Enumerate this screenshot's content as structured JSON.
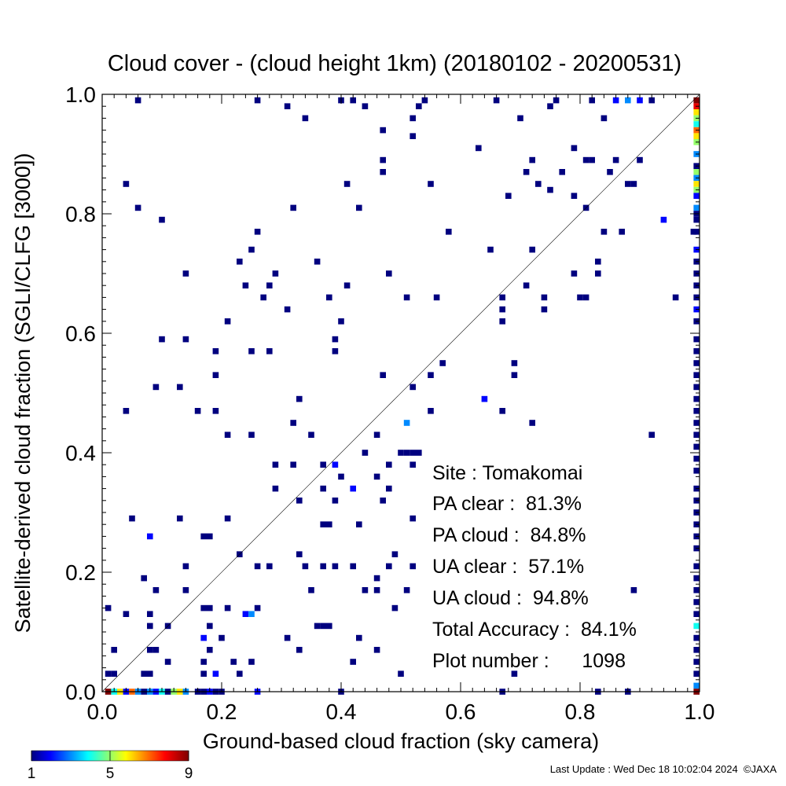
{
  "chart_data": {
    "type": "heatmap",
    "title": "Cloud cover - (cloud height 1km)  (20180102 - 20200531)",
    "xlabel": "Ground-based cloud fraction (sky camera)",
    "ylabel": "Satellite-derived cloud fraction (SGLI/CLFG [3000])",
    "xlim": [
      0.0,
      1.0
    ],
    "ylim": [
      0.0,
      1.0
    ],
    "xticks": [
      "0.0",
      "0.2",
      "0.4",
      "0.6",
      "0.8",
      "1.0"
    ],
    "yticks": [
      "0.0",
      "0.2",
      "0.4",
      "0.6",
      "0.8",
      "1.0"
    ],
    "grid": false,
    "reference_line": "1:1 diagonal",
    "colorbar": {
      "min": 1,
      "max": 9,
      "tick_labels": [
        "1",
        "5",
        "9"
      ]
    },
    "stats": {
      "site": "Site : Tomakomai",
      "pa_clear": "PA clear :  81.3%",
      "pa_cloud": "PA cloud :  84.8%",
      "ua_clear": "UA clear :  57.1%",
      "ua_cloud": "UA cloud :  94.8%",
      "total_accuracy": "Total Accuracy :  84.1%",
      "plot_number": "Plot number :      1098"
    },
    "cells": [
      [
        0.06,
        0.99,
        1
      ],
      [
        0.26,
        0.99,
        1
      ],
      [
        0.4,
        0.99,
        1
      ],
      [
        0.42,
        0.99,
        1
      ],
      [
        0.54,
        0.99,
        1
      ],
      [
        0.66,
        0.99,
        1
      ],
      [
        0.76,
        0.99,
        1
      ],
      [
        0.82,
        0.99,
        1
      ],
      [
        0.86,
        0.99,
        2
      ],
      [
        0.88,
        0.99,
        3
      ],
      [
        0.9,
        0.99,
        2
      ],
      [
        0.92,
        0.99,
        1
      ],
      [
        0.31,
        0.98,
        1
      ],
      [
        0.44,
        0.98,
        1
      ],
      [
        0.53,
        0.98,
        1
      ],
      [
        0.75,
        0.98,
        1
      ],
      [
        0.34,
        0.96,
        1
      ],
      [
        0.52,
        0.96,
        1
      ],
      [
        0.7,
        0.96,
        1
      ],
      [
        0.84,
        0.96,
        1
      ],
      [
        0.47,
        0.94,
        1
      ],
      [
        0.52,
        0.93,
        1
      ],
      [
        0.63,
        0.91,
        1
      ],
      [
        0.79,
        0.91,
        1
      ],
      [
        0.47,
        0.89,
        1
      ],
      [
        0.72,
        0.89,
        1
      ],
      [
        0.81,
        0.89,
        1
      ],
      [
        0.82,
        0.89,
        1
      ],
      [
        0.86,
        0.89,
        1
      ],
      [
        0.9,
        0.89,
        1
      ],
      [
        0.47,
        0.87,
        1
      ],
      [
        0.71,
        0.87,
        1
      ],
      [
        0.77,
        0.87,
        1
      ],
      [
        0.85,
        0.87,
        1
      ],
      [
        0.04,
        0.85,
        1
      ],
      [
        0.41,
        0.85,
        1
      ],
      [
        0.55,
        0.85,
        1
      ],
      [
        0.73,
        0.85,
        1
      ],
      [
        0.88,
        0.85,
        1
      ],
      [
        0.89,
        0.85,
        1
      ],
      [
        0.68,
        0.83,
        1
      ],
      [
        0.75,
        0.84,
        1
      ],
      [
        0.79,
        0.83,
        1
      ],
      [
        0.06,
        0.81,
        1
      ],
      [
        0.32,
        0.81,
        1
      ],
      [
        0.43,
        0.81,
        1
      ],
      [
        0.81,
        0.81,
        1
      ],
      [
        0.1,
        0.79,
        1
      ],
      [
        0.94,
        0.79,
        2
      ],
      [
        0.26,
        0.77,
        1
      ],
      [
        0.58,
        0.77,
        1
      ],
      [
        0.84,
        0.77,
        1
      ],
      [
        0.87,
        0.77,
        1
      ],
      [
        0.99,
        0.77,
        1
      ],
      [
        0.25,
        0.74,
        1
      ],
      [
        0.65,
        0.74,
        1
      ],
      [
        0.72,
        0.74,
        1
      ],
      [
        0.23,
        0.72,
        1
      ],
      [
        0.36,
        0.72,
        1
      ],
      [
        0.83,
        0.72,
        1
      ],
      [
        0.14,
        0.7,
        1
      ],
      [
        0.29,
        0.7,
        1
      ],
      [
        0.48,
        0.7,
        1
      ],
      [
        0.79,
        0.7,
        1
      ],
      [
        0.83,
        0.7,
        1
      ],
      [
        0.24,
        0.68,
        1
      ],
      [
        0.28,
        0.68,
        1
      ],
      [
        0.41,
        0.68,
        1
      ],
      [
        0.71,
        0.68,
        1
      ],
      [
        0.27,
        0.66,
        1
      ],
      [
        0.38,
        0.66,
        1
      ],
      [
        0.51,
        0.66,
        1
      ],
      [
        0.56,
        0.66,
        1
      ],
      [
        0.67,
        0.66,
        1
      ],
      [
        0.74,
        0.66,
        1
      ],
      [
        0.8,
        0.66,
        1
      ],
      [
        0.81,
        0.66,
        1
      ],
      [
        0.96,
        0.66,
        1
      ],
      [
        0.31,
        0.64,
        1
      ],
      [
        0.67,
        0.64,
        1
      ],
      [
        0.74,
        0.64,
        1
      ],
      [
        0.21,
        0.62,
        1
      ],
      [
        0.4,
        0.62,
        1
      ],
      [
        0.67,
        0.62,
        1
      ],
      [
        0.1,
        0.59,
        1
      ],
      [
        0.14,
        0.59,
        1
      ],
      [
        0.39,
        0.59,
        1
      ],
      [
        0.19,
        0.57,
        1
      ],
      [
        0.25,
        0.57,
        1
      ],
      [
        0.28,
        0.57,
        1
      ],
      [
        0.39,
        0.57,
        1
      ],
      [
        0.57,
        0.55,
        1
      ],
      [
        0.69,
        0.55,
        1
      ],
      [
        0.19,
        0.53,
        1
      ],
      [
        0.47,
        0.53,
        1
      ],
      [
        0.55,
        0.53,
        1
      ],
      [
        0.69,
        0.53,
        1
      ],
      [
        0.09,
        0.51,
        1
      ],
      [
        0.13,
        0.51,
        1
      ],
      [
        0.52,
        0.51,
        1
      ],
      [
        0.64,
        0.49,
        2
      ],
      [
        0.33,
        0.49,
        1
      ],
      [
        0.04,
        0.47,
        1
      ],
      [
        0.16,
        0.47,
        1
      ],
      [
        0.19,
        0.47,
        1
      ],
      [
        0.55,
        0.47,
        1
      ],
      [
        0.67,
        0.47,
        1
      ],
      [
        0.32,
        0.45,
        1
      ],
      [
        0.51,
        0.45,
        3
      ],
      [
        0.72,
        0.45,
        1
      ],
      [
        0.21,
        0.43,
        1
      ],
      [
        0.25,
        0.43,
        1
      ],
      [
        0.35,
        0.43,
        1
      ],
      [
        0.46,
        0.43,
        1
      ],
      [
        0.92,
        0.43,
        1
      ],
      [
        0.44,
        0.4,
        1
      ],
      [
        0.5,
        0.4,
        1
      ],
      [
        0.51,
        0.4,
        1
      ],
      [
        0.52,
        0.4,
        1
      ],
      [
        0.53,
        0.4,
        1
      ],
      [
        0.29,
        0.38,
        1
      ],
      [
        0.32,
        0.38,
        1
      ],
      [
        0.37,
        0.38,
        1
      ],
      [
        0.39,
        0.38,
        2
      ],
      [
        0.48,
        0.38,
        1
      ],
      [
        0.52,
        0.38,
        1
      ],
      [
        0.4,
        0.36,
        1
      ],
      [
        0.46,
        0.36,
        1
      ],
      [
        0.29,
        0.34,
        1
      ],
      [
        0.37,
        0.34,
        1
      ],
      [
        0.42,
        0.34,
        2
      ],
      [
        0.48,
        0.34,
        1
      ],
      [
        0.33,
        0.32,
        1
      ],
      [
        0.39,
        0.32,
        1
      ],
      [
        0.47,
        0.32,
        1
      ],
      [
        0.05,
        0.29,
        1
      ],
      [
        0.13,
        0.29,
        1
      ],
      [
        0.21,
        0.29,
        1
      ],
      [
        0.52,
        0.29,
        1
      ],
      [
        0.37,
        0.28,
        1
      ],
      [
        0.38,
        0.28,
        1
      ],
      [
        0.43,
        0.28,
        1
      ],
      [
        0.08,
        0.26,
        2
      ],
      [
        0.17,
        0.26,
        1
      ],
      [
        0.18,
        0.26,
        1
      ],
      [
        0.23,
        0.23,
        1
      ],
      [
        0.33,
        0.23,
        1
      ],
      [
        0.49,
        0.23,
        1
      ],
      [
        0.14,
        0.21,
        1
      ],
      [
        0.26,
        0.21,
        1
      ],
      [
        0.28,
        0.21,
        1
      ],
      [
        0.34,
        0.21,
        1
      ],
      [
        0.37,
        0.21,
        1
      ],
      [
        0.39,
        0.21,
        1
      ],
      [
        0.42,
        0.21,
        1
      ],
      [
        0.48,
        0.21,
        1
      ],
      [
        0.52,
        0.21,
        1
      ],
      [
        0.07,
        0.19,
        1
      ],
      [
        0.46,
        0.19,
        1
      ],
      [
        0.09,
        0.17,
        1
      ],
      [
        0.14,
        0.17,
        1
      ],
      [
        0.35,
        0.17,
        1
      ],
      [
        0.44,
        0.17,
        1
      ],
      [
        0.46,
        0.17,
        1
      ],
      [
        0.51,
        0.17,
        1
      ],
      [
        0.89,
        0.17,
        1
      ],
      [
        0.01,
        0.14,
        1
      ],
      [
        0.04,
        0.13,
        1
      ],
      [
        0.08,
        0.13,
        1
      ],
      [
        0.17,
        0.14,
        1
      ],
      [
        0.18,
        0.14,
        1
      ],
      [
        0.21,
        0.14,
        1
      ],
      [
        0.24,
        0.13,
        2
      ],
      [
        0.25,
        0.13,
        3
      ],
      [
        0.26,
        0.14,
        1
      ],
      [
        0.49,
        0.14,
        1
      ],
      [
        0.08,
        0.11,
        1
      ],
      [
        0.11,
        0.11,
        1
      ],
      [
        0.18,
        0.11,
        1
      ],
      [
        0.36,
        0.11,
        1
      ],
      [
        0.37,
        0.11,
        1
      ],
      [
        0.38,
        0.11,
        1
      ],
      [
        0.17,
        0.09,
        2
      ],
      [
        0.2,
        0.09,
        1
      ],
      [
        0.31,
        0.09,
        1
      ],
      [
        0.43,
        0.09,
        1
      ],
      [
        0.02,
        0.07,
        1
      ],
      [
        0.08,
        0.07,
        1
      ],
      [
        0.09,
        0.07,
        1
      ],
      [
        0.18,
        0.07,
        1
      ],
      [
        0.33,
        0.07,
        1
      ],
      [
        0.46,
        0.07,
        1
      ],
      [
        0.11,
        0.05,
        1
      ],
      [
        0.17,
        0.05,
        1
      ],
      [
        0.22,
        0.05,
        1
      ],
      [
        0.25,
        0.05,
        1
      ],
      [
        0.42,
        0.05,
        1
      ],
      [
        0.01,
        0.03,
        1
      ],
      [
        0.02,
        0.03,
        1
      ],
      [
        0.07,
        0.03,
        1
      ],
      [
        0.08,
        0.03,
        1
      ],
      [
        0.17,
        0.03,
        1
      ],
      [
        0.19,
        0.03,
        2
      ],
      [
        0.23,
        0.03,
        1
      ],
      [
        0.5,
        0.03,
        1
      ],
      [
        0.69,
        0.03,
        1
      ],
      [
        0.01,
        0.0,
        9
      ],
      [
        0.02,
        0.0,
        4
      ],
      [
        0.03,
        0.0,
        6
      ],
      [
        0.04,
        0.0,
        2
      ],
      [
        0.05,
        0.0,
        7
      ],
      [
        0.06,
        0.0,
        3
      ],
      [
        0.07,
        0.0,
        1
      ],
      [
        0.08,
        0.0,
        3
      ],
      [
        0.09,
        0.0,
        2
      ],
      [
        0.1,
        0.0,
        4
      ],
      [
        0.11,
        0.0,
        1
      ],
      [
        0.12,
        0.0,
        5
      ],
      [
        0.13,
        0.0,
        6
      ],
      [
        0.14,
        0.0,
        3
      ],
      [
        0.16,
        0.0,
        1
      ],
      [
        0.17,
        0.0,
        1
      ],
      [
        0.18,
        0.0,
        2
      ],
      [
        0.19,
        0.0,
        1
      ],
      [
        0.2,
        0.0,
        1
      ],
      [
        0.26,
        0.0,
        2
      ],
      [
        0.4,
        0.0,
        1
      ],
      [
        0.67,
        0.0,
        1
      ],
      [
        0.83,
        0.0,
        1
      ],
      [
        0.88,
        0.0,
        1
      ],
      [
        1.0,
        0.99,
        9
      ],
      [
        1.0,
        0.98,
        8
      ],
      [
        1.0,
        0.97,
        6
      ],
      [
        1.0,
        0.96,
        5
      ],
      [
        1.0,
        0.95,
        4
      ],
      [
        1.0,
        0.94,
        7
      ],
      [
        1.0,
        0.93,
        6
      ],
      [
        1.0,
        0.92,
        5
      ],
      [
        1.0,
        0.9,
        3
      ],
      [
        1.0,
        0.88,
        1
      ],
      [
        1.0,
        0.87,
        5
      ],
      [
        1.0,
        0.86,
        3
      ],
      [
        1.0,
        0.85,
        6
      ],
      [
        1.0,
        0.84,
        5
      ],
      [
        1.0,
        0.83,
        2
      ],
      [
        1.0,
        0.81,
        3
      ],
      [
        1.0,
        0.8,
        1
      ],
      [
        1.0,
        0.79,
        1
      ],
      [
        1.0,
        0.77,
        1
      ],
      [
        1.0,
        0.74,
        2
      ],
      [
        1.0,
        0.72,
        1
      ],
      [
        1.0,
        0.7,
        1
      ],
      [
        1.0,
        0.68,
        1
      ],
      [
        1.0,
        0.66,
        1
      ],
      [
        1.0,
        0.64,
        2
      ],
      [
        1.0,
        0.62,
        1
      ],
      [
        1.0,
        0.59,
        1
      ],
      [
        1.0,
        0.57,
        1
      ],
      [
        1.0,
        0.55,
        1
      ],
      [
        1.0,
        0.53,
        1
      ],
      [
        1.0,
        0.51,
        1
      ],
      [
        1.0,
        0.49,
        1
      ],
      [
        1.0,
        0.47,
        1
      ],
      [
        1.0,
        0.45,
        1
      ],
      [
        1.0,
        0.43,
        1
      ],
      [
        1.0,
        0.41,
        1
      ],
      [
        1.0,
        0.39,
        1
      ],
      [
        1.0,
        0.37,
        1
      ],
      [
        1.0,
        0.34,
        1
      ],
      [
        1.0,
        0.32,
        1
      ],
      [
        1.0,
        0.3,
        1
      ],
      [
        1.0,
        0.28,
        1
      ],
      [
        1.0,
        0.26,
        1
      ],
      [
        1.0,
        0.24,
        1
      ],
      [
        1.0,
        0.21,
        1
      ],
      [
        1.0,
        0.19,
        1
      ],
      [
        1.0,
        0.17,
        1
      ],
      [
        1.0,
        0.15,
        1
      ],
      [
        1.0,
        0.13,
        1
      ],
      [
        1.0,
        0.11,
        4
      ],
      [
        1.0,
        0.09,
        1
      ],
      [
        1.0,
        0.07,
        1
      ],
      [
        1.0,
        0.05,
        1
      ],
      [
        1.0,
        0.03,
        1
      ],
      [
        1.0,
        0.01,
        3
      ],
      [
        1.0,
        0.0,
        9
      ]
    ]
  },
  "footer": {
    "update_text": "Last Update : Wed Dec 18 10:02:04 2024  ©JAXA"
  }
}
